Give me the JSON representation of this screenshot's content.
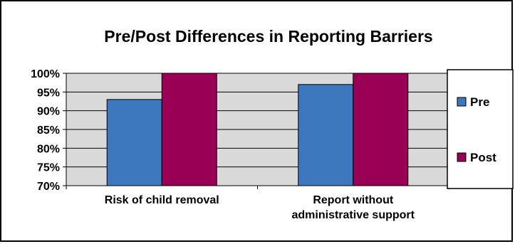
{
  "chart_data": {
    "type": "bar",
    "title": "Pre/Post Differences in Reporting Barriers",
    "categories": [
      "Risk of child removal",
      "Report without administrative support"
    ],
    "category_lines": [
      [
        "Risk of child removal"
      ],
      [
        "Report without",
        "administrative support"
      ]
    ],
    "series": [
      {
        "name": "Pre",
        "values": [
          93,
          97
        ],
        "color": "#3d78bf"
      },
      {
        "name": "Post",
        "values": [
          100,
          100
        ],
        "color": "#990055"
      }
    ],
    "ylim": [
      70,
      100
    ],
    "yticks": [
      70,
      75,
      80,
      85,
      90,
      95,
      100
    ],
    "ytick_labels": [
      "70%",
      "75%",
      "80%",
      "85%",
      "90%",
      "95%",
      "100%"
    ],
    "grid": true,
    "plot_background": "#d9d9d9",
    "legend_position": "right"
  }
}
